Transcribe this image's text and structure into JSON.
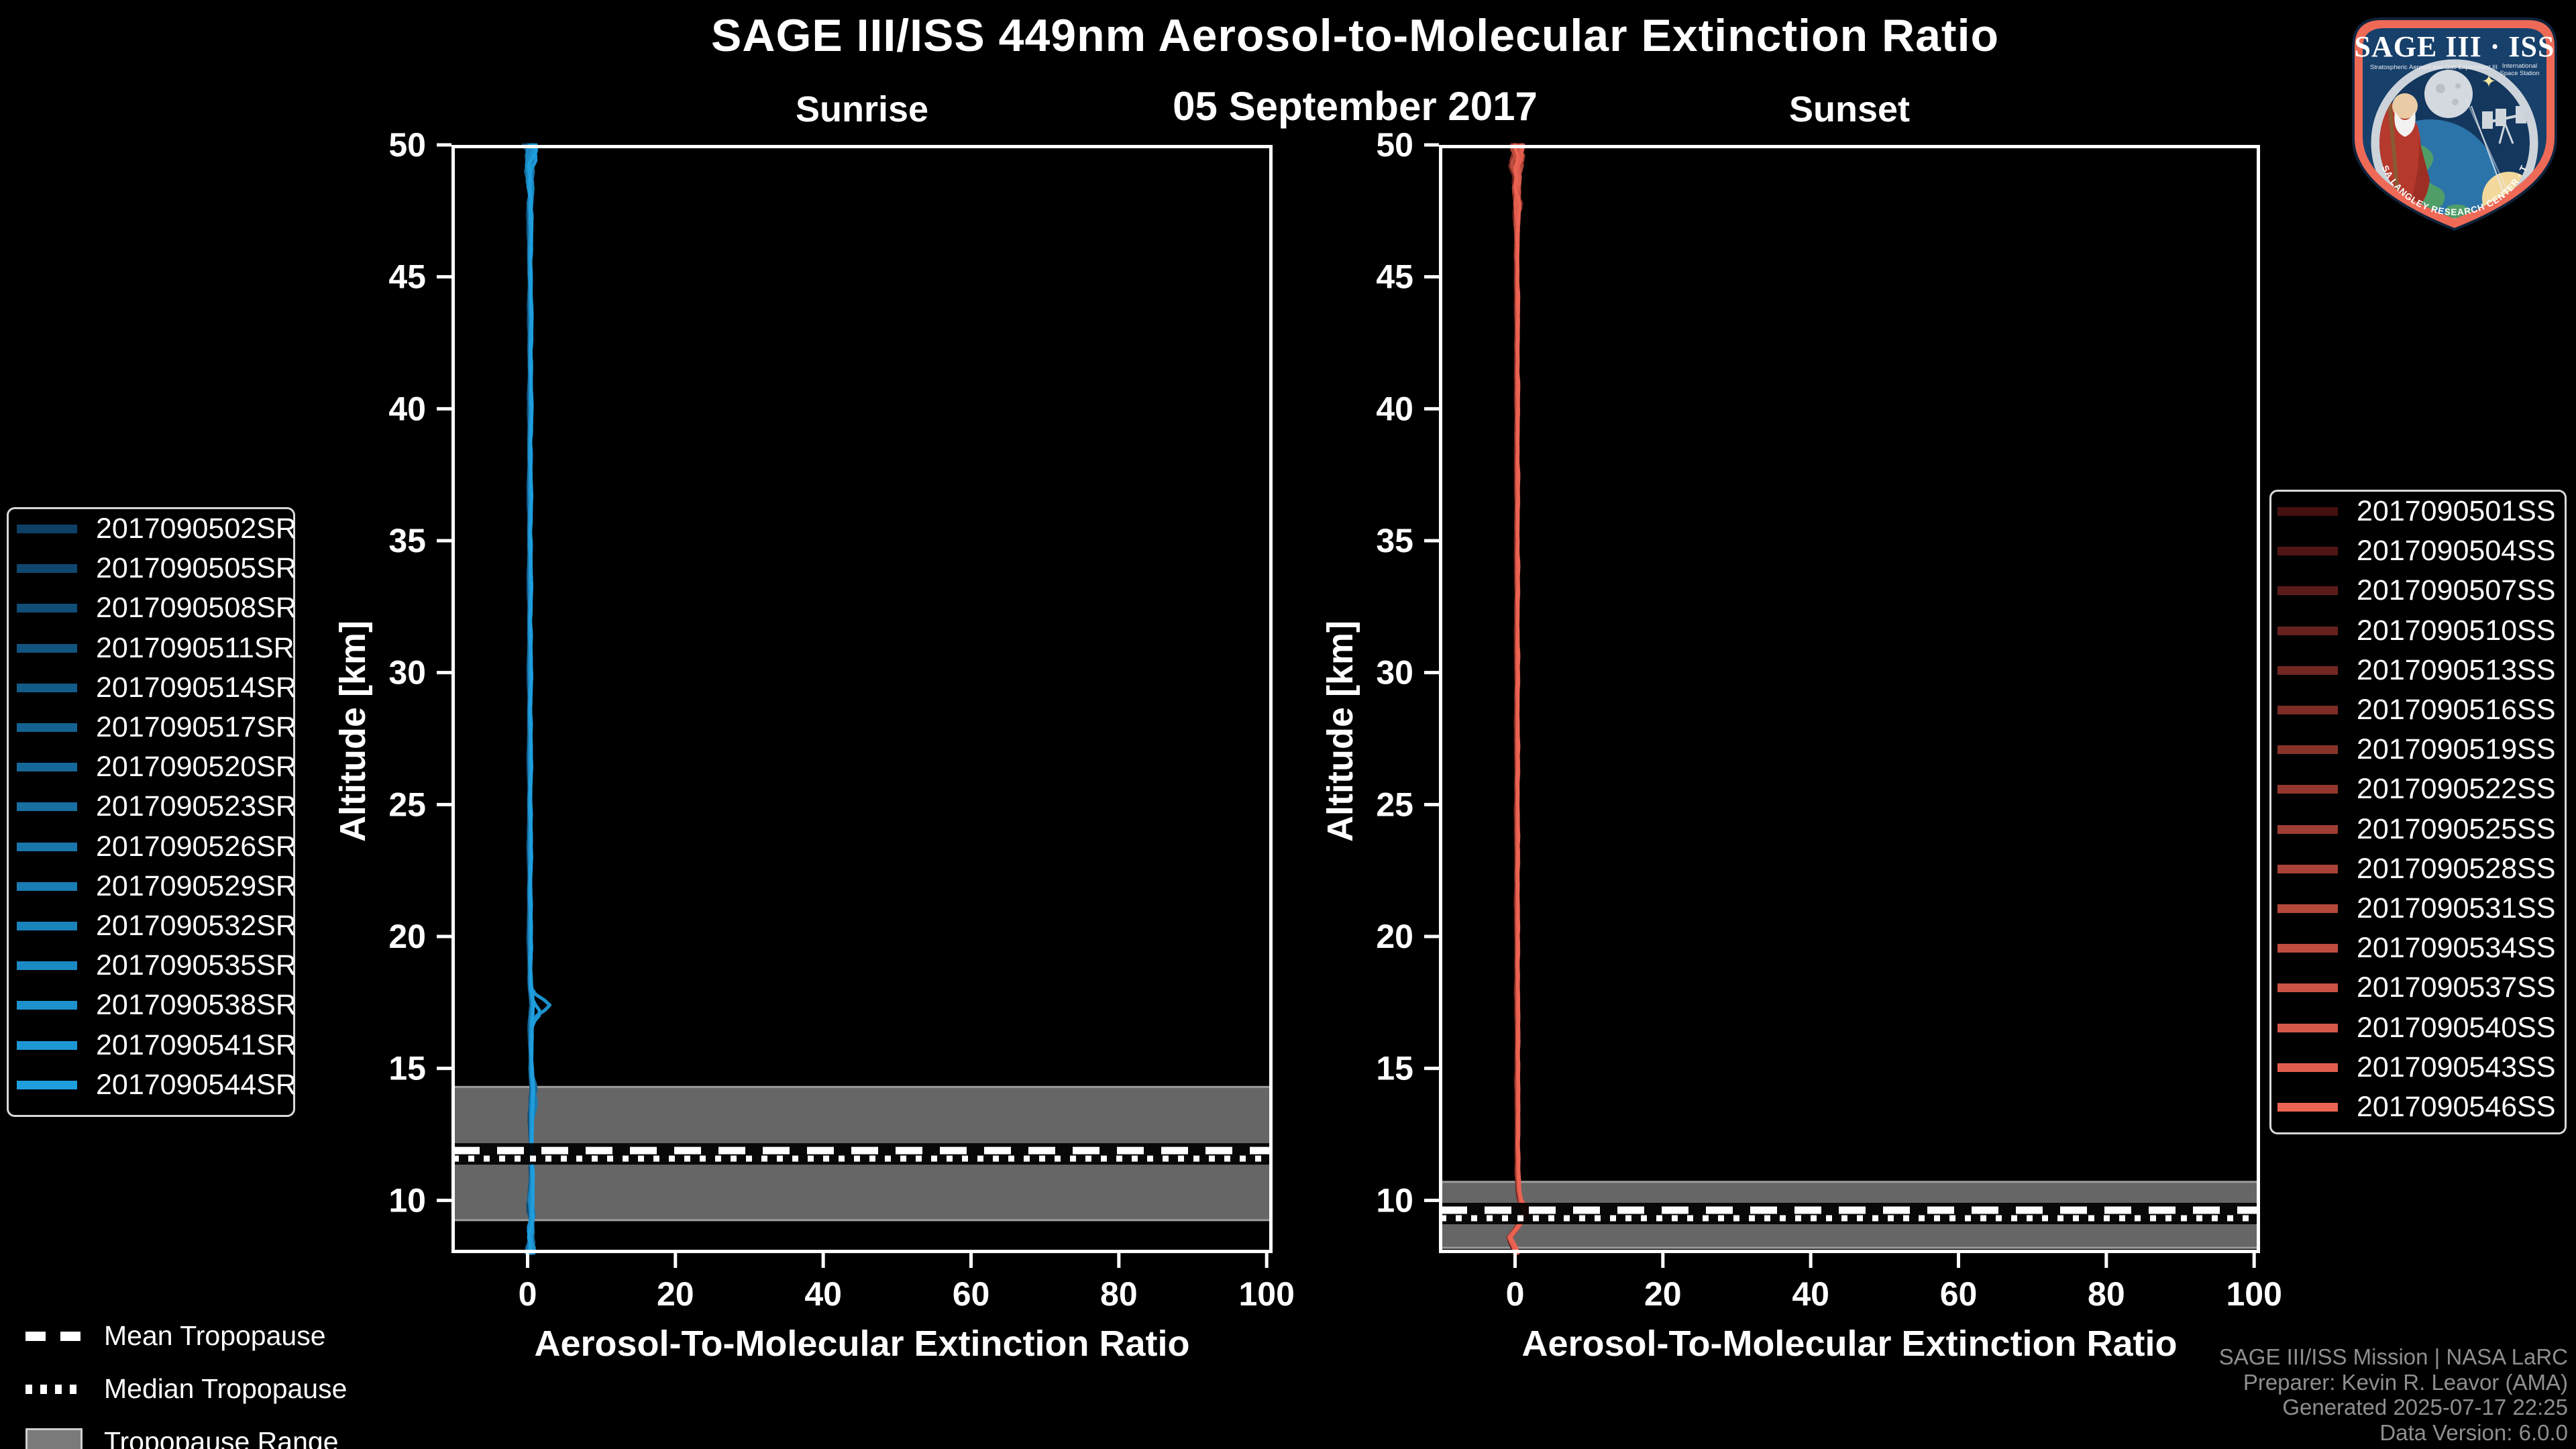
{
  "figure": {
    "title": "SAGE III/ISS 449nm Aerosol-to-Molecular Extinction Ratio",
    "subtitle": "05 September 2017",
    "background": "#000000"
  },
  "chart_data": [
    {
      "type": "line",
      "panel": "Sunrise",
      "xlabel": "Aerosol-To-Molecular Extinction Ratio",
      "ylabel": "Altitude [km]",
      "xlim": [
        -10.3,
        100.8
      ],
      "ylim": [
        8,
        50
      ],
      "xticks": [
        0,
        20,
        40,
        60,
        80,
        100
      ],
      "yticks": [
        10,
        15,
        20,
        25,
        30,
        35,
        40,
        45,
        50
      ],
      "grid": false,
      "legend_position": "outside-left",
      "series": [
        "2017090502SR",
        "2017090505SR",
        "2017090508SR",
        "2017090511SR",
        "2017090514SR",
        "2017090517SR",
        "2017090520SR",
        "2017090523SR",
        "2017090526SR",
        "2017090529SR",
        "2017090532SR",
        "2017090535SR",
        "2017090538SR",
        "2017090541SR",
        "2017090544SR"
      ],
      "colors": [
        "#0e4066",
        "#1f9ede"
      ],
      "tropopause": {
        "range": [
          9.25,
          14.3
        ],
        "mean": 11.82,
        "median": 11.7
      },
      "profile_base": [
        [
          50,
          0.35
        ],
        [
          49,
          0.3
        ],
        [
          48,
          0.35
        ],
        [
          47,
          0.3
        ],
        [
          46,
          0.3
        ],
        [
          44,
          0.35
        ],
        [
          42,
          0.35
        ],
        [
          40,
          0.35
        ],
        [
          38,
          0.3
        ],
        [
          36,
          0.3
        ],
        [
          34,
          0.3
        ],
        [
          32,
          0.3
        ],
        [
          30,
          0.3
        ],
        [
          28,
          0.3
        ],
        [
          26,
          0.3
        ],
        [
          24,
          0.3
        ],
        [
          22,
          0.3
        ],
        [
          20,
          0.3
        ],
        [
          19,
          0.3
        ],
        [
          18,
          0.4
        ],
        [
          17.4,
          0.6
        ],
        [
          16.8,
          0.45
        ],
        [
          16,
          0.4
        ],
        [
          15,
          0.5
        ],
        [
          14.2,
          0.6
        ],
        [
          13.4,
          0.5
        ],
        [
          12.6,
          0.45
        ],
        [
          12,
          0.5
        ],
        [
          11.2,
          0.55
        ],
        [
          10.6,
          0.5
        ],
        [
          10,
          0.45
        ],
        [
          9.4,
          0.5
        ],
        [
          8.8,
          0.4
        ],
        [
          8.3,
          0.5
        ],
        [
          8,
          0.4
        ]
      ],
      "noise": {
        "top_start": 46,
        "top_amp": 0.85,
        "base_amp": 0.13,
        "low_start": 11,
        "low_amp": 0.45
      },
      "features": [
        {
          "i": 12,
          "c": 17.4,
          "s": 0.33,
          "a": 2.3
        },
        {
          "i": 13,
          "c": 17.1,
          "s": 0.28,
          "a": 1.0
        },
        {
          "i": 9,
          "c": 13.6,
          "s": 0.5,
          "a": 0.5
        },
        {
          "i": 6,
          "c": 14.3,
          "s": 0.45,
          "a": 0.45
        }
      ]
    },
    {
      "type": "line",
      "panel": "Sunset",
      "xlabel": "Aerosol-To-Molecular Extinction Ratio",
      "ylabel": "Altitude [km]",
      "xlim": [
        -10.3,
        100.8
      ],
      "ylim": [
        8,
        50
      ],
      "xticks": [
        0,
        20,
        40,
        60,
        80,
        100
      ],
      "yticks": [
        10,
        15,
        20,
        25,
        30,
        35,
        40,
        45,
        50
      ],
      "grid": false,
      "legend_position": "outside-right",
      "series": [
        "2017090501SS",
        "2017090504SS",
        "2017090507SS",
        "2017090510SS",
        "2017090513SS",
        "2017090516SS",
        "2017090519SS",
        "2017090522SS",
        "2017090525SS",
        "2017090528SS",
        "2017090531SS",
        "2017090534SS",
        "2017090537SS",
        "2017090540SS",
        "2017090543SS",
        "2017090546SS"
      ],
      "colors": [
        "#451110",
        "#ec6351"
      ],
      "tropopause": {
        "range": [
          8.2,
          10.7
        ],
        "mean": 9.6,
        "median": 9.4
      },
      "profile_base": [
        [
          50,
          0.25
        ],
        [
          49,
          0.2
        ],
        [
          48,
          0.25
        ],
        [
          47,
          0.2
        ],
        [
          46,
          0.2
        ],
        [
          44,
          0.25
        ],
        [
          40,
          0.25
        ],
        [
          36,
          0.25
        ],
        [
          32,
          0.25
        ],
        [
          28,
          0.25
        ],
        [
          24,
          0.25
        ],
        [
          20,
          0.25
        ],
        [
          16,
          0.3
        ],
        [
          14,
          0.3
        ],
        [
          12,
          0.3
        ],
        [
          11,
          0.35
        ],
        [
          10.4,
          0.45
        ],
        [
          9.9,
          0.7
        ],
        [
          9.55,
          1.25
        ],
        [
          9.2,
          0.7
        ],
        [
          8.9,
          0.1
        ],
        [
          8.6,
          -0.75
        ],
        [
          8.3,
          -0.3
        ],
        [
          8,
          0.15
        ]
      ],
      "noise": {
        "top_start": 45.5,
        "top_amp": 1.15,
        "base_amp": 0.11,
        "low_start": 10,
        "low_amp": 0.2
      },
      "features": [
        {
          "i": 14,
          "c": 9.6,
          "s": 0.3,
          "a": 0.5
        },
        {
          "i": 3,
          "c": 47.8,
          "s": 0.5,
          "a": 0.8
        }
      ]
    }
  ],
  "tropopause_legend": {
    "items": [
      {
        "label": "Mean Tropopause",
        "swatch": "dashed-line"
      },
      {
        "label": "Median Tropopause",
        "swatch": "dotted-line"
      },
      {
        "label": "Tropopause Range",
        "swatch": "filled-box"
      }
    ]
  },
  "attribution": {
    "lines": [
      "SAGE III/ISS Mission | NASA LaRC",
      "Preparer: Kevin R. Leavor (AMA)",
      "Generated 2025-07-17 22:25",
      "Data Version: 6.0.0"
    ],
    "color": "#8f8f8f"
  },
  "logo": {
    "title": "SAGE III · ISS",
    "subtitle_left": "Stratospheric Aerosol and Gas Experiment III",
    "subtitle_right_1": "International",
    "subtitle_right_2": "Space Station",
    "ring_text": "BALL · NASA LANGLEY RESEARCH CENTER · TAS-I · ESA",
    "colors": {
      "border": "#ee6a57",
      "field": "#17406b",
      "ring": "#ccd3da",
      "earth_land": "#4f9e68",
      "earth_ocean": "#2b74a9",
      "sun": "#f3d89c",
      "moon": "#d4d9df",
      "robe": "#b5392c"
    }
  },
  "style_colors": {
    "band_fill": "#666666",
    "band_edge": "#9d9d9d",
    "spine": "#ffffff",
    "tick_label": "#ffffff"
  }
}
